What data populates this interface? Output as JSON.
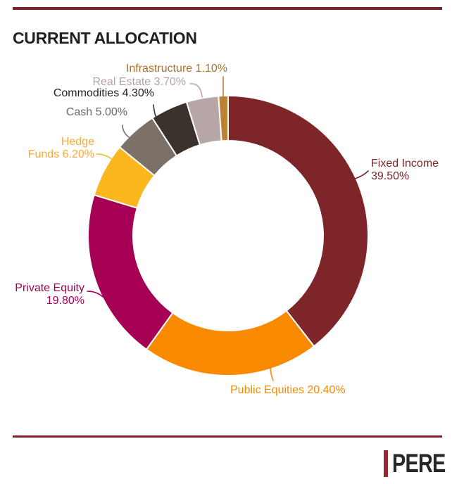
{
  "title": "CURRENT ALLOCATION",
  "logo": {
    "text": "PERE"
  },
  "colors": {
    "background": "#FFFFFF",
    "rule": "#7B2327",
    "title": "#231F20",
    "logo_bar": "#952830",
    "logo_text": "#2A2627",
    "slice_gap_stroke": "#FFFFFF"
  },
  "chart_data": {
    "type": "pie",
    "subtype": "donut",
    "title": "CURRENT ALLOCATION",
    "start_angle_deg": 0,
    "direction": "clockwise",
    "inner_radius_ratio": 0.68,
    "legend_position": "outside-labels-with-leader-lines",
    "categories": [
      "Fixed Income",
      "Public Equities",
      "Private Equity",
      "Hedge Funds",
      "Cash",
      "Commodities",
      "Real Estate",
      "Infrastructure"
    ],
    "values": [
      39.5,
      20.4,
      19.8,
      6.2,
      5.0,
      4.3,
      3.7,
      1.1
    ],
    "segments": [
      {
        "name": "Fixed Income",
        "value": 39.5,
        "display": "39.50%",
        "color": "#7D2528",
        "label_color": "#7D2528",
        "label_lines": [
          "Fixed Income",
          "39.50%"
        ]
      },
      {
        "name": "Public Equities",
        "value": 20.4,
        "display": "20.40%",
        "color": "#F98A00",
        "label_color": "#F98A00",
        "label_lines": [
          "Public Equities 20.40%"
        ]
      },
      {
        "name": "Private Equity",
        "value": 19.8,
        "display": "19.80%",
        "color": "#A50053",
        "label_color": "#A50053",
        "label_lines": [
          "Private Equity",
          "19.80%"
        ]
      },
      {
        "name": "Hedge Funds",
        "value": 6.2,
        "display": "6.20%",
        "color": "#FCB61E",
        "label_color": "#F9A93C",
        "label_lines": [
          "Hedge",
          "Funds 6.20%"
        ]
      },
      {
        "name": "Cash",
        "value": 5.0,
        "display": "5.00%",
        "color": "#7B7166",
        "label_color": "#6F675D",
        "label_lines": [
          "Cash 5.00%"
        ]
      },
      {
        "name": "Commodities",
        "value": 4.3,
        "display": "4.30%",
        "color": "#3A322C",
        "label_color": "#231F20",
        "label_lines": [
          "Commodities 4.30%"
        ]
      },
      {
        "name": "Real Estate",
        "value": 3.7,
        "display": "3.70%",
        "color": "#B7A6A6",
        "label_color": "#B3A3A2",
        "label_lines": [
          "Real Estate 3.70%"
        ]
      },
      {
        "name": "Infrastructure",
        "value": 1.1,
        "display": "1.10%",
        "color": "#BF7F35",
        "label_color": "#A8722E",
        "label_lines": [
          "Infrastructure 1.10%"
        ]
      }
    ]
  }
}
